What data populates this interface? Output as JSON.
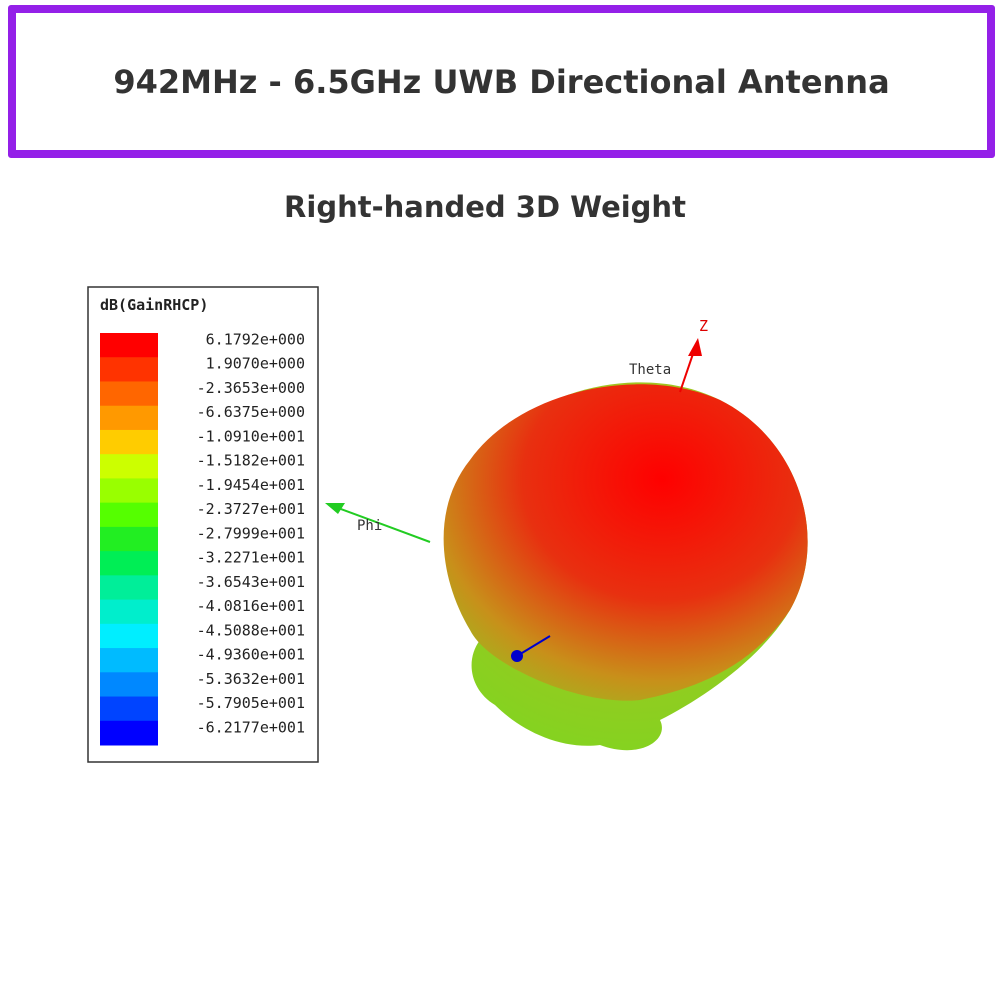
{
  "header": {
    "title": "942MHz - 6.5GHz UWB Directional Antenna"
  },
  "subtitle": "Right-handed 3D Weight",
  "legend": {
    "title": "dB(GainRHCP)",
    "items": [
      {
        "label": "6.1792e+000",
        "color": "#ff0000"
      },
      {
        "label": "1.9070e+000",
        "color": "#ff3300"
      },
      {
        "label": "-2.3653e+000",
        "color": "#ff6600"
      },
      {
        "label": "-6.6375e+000",
        "color": "#ff9900"
      },
      {
        "label": "-1.0910e+001",
        "color": "#ffcc00"
      },
      {
        "label": "-1.5182e+001",
        "color": "#ccff00"
      },
      {
        "label": "-1.9454e+001",
        "color": "#99ff00"
      },
      {
        "label": "-2.3727e+001",
        "color": "#55ff00"
      },
      {
        "label": "-2.7999e+001",
        "color": "#22ee22"
      },
      {
        "label": "-3.2271e+001",
        "color": "#00ee55"
      },
      {
        "label": "-3.6543e+001",
        "color": "#00ee99"
      },
      {
        "label": "-4.0816e+001",
        "color": "#00eecc"
      },
      {
        "label": "-4.5088e+001",
        "color": "#00eeff"
      },
      {
        "label": "-4.9360e+001",
        "color": "#00bbff"
      },
      {
        "label": "-5.3632e+001",
        "color": "#0088ff"
      },
      {
        "label": "-5.7905e+001",
        "color": "#0044ff"
      },
      {
        "label": "-6.2177e+001",
        "color": "#0000ff"
      }
    ]
  },
  "axes": {
    "z": "Z",
    "theta": "Theta",
    "phi": "Phi"
  }
}
